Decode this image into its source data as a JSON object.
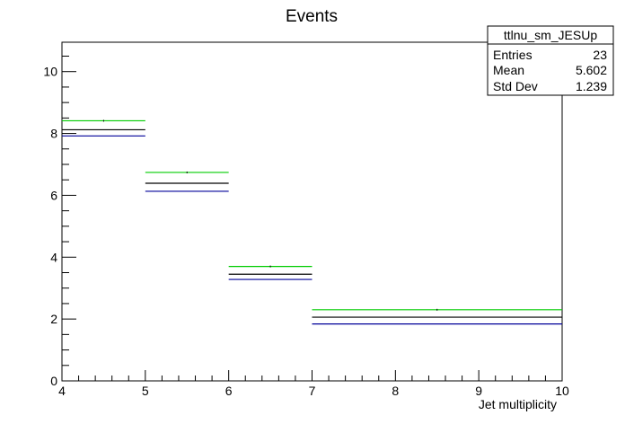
{
  "chart_data": {
    "type": "histogram",
    "title": "Events",
    "xlabel": "Jet multiplicity",
    "ylabel": "",
    "xlim": [
      4,
      10
    ],
    "ylim": [
      0,
      10.95
    ],
    "x_ticks": [
      "4",
      "5",
      "6",
      "7",
      "8",
      "9",
      "10"
    ],
    "y_ticks": [
      "0",
      "2",
      "4",
      "6",
      "8",
      "10"
    ],
    "bins": [
      {
        "x_low": 4,
        "x_high": 5
      },
      {
        "x_low": 5,
        "x_high": 6
      },
      {
        "x_low": 6,
        "x_high": 7
      },
      {
        "x_low": 7,
        "x_high": 10
      }
    ],
    "series": [
      {
        "color": "#00cc00",
        "values": [
          8.41,
          6.74,
          3.7,
          2.3
        ]
      },
      {
        "color": "#000000",
        "values": [
          8.12,
          6.39,
          3.45,
          2.06
        ]
      },
      {
        "color": "#000099",
        "values": [
          7.92,
          6.13,
          3.28,
          1.84
        ]
      }
    ],
    "stats_box": {
      "name": "ttlnu_sm_JESUp",
      "rows": [
        {
          "label": "Entries",
          "value": "23"
        },
        {
          "label": "Mean",
          "value": "5.602"
        },
        {
          "label": "Std Dev",
          "value": "1.239"
        }
      ]
    },
    "grid": false
  }
}
